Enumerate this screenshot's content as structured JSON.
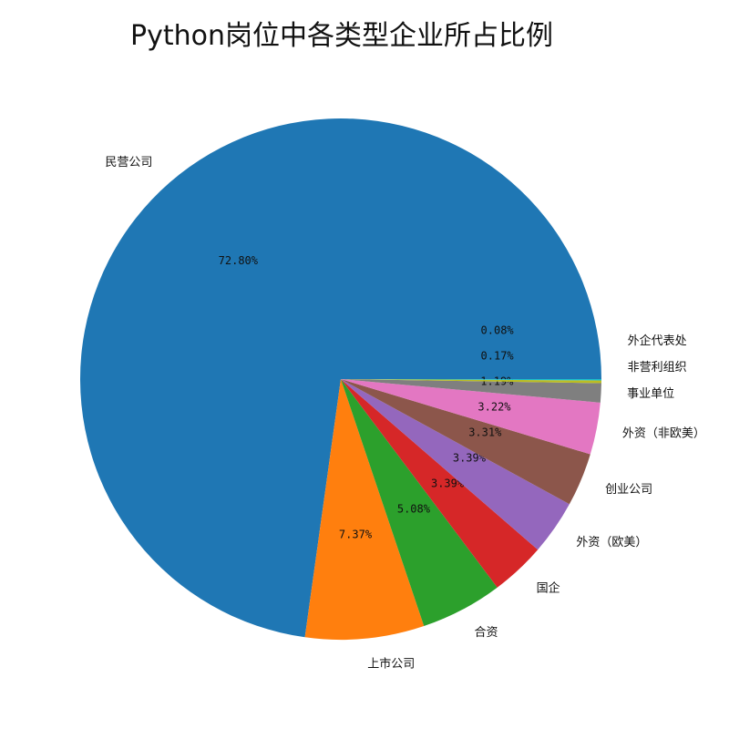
{
  "chart_data": {
    "type": "pie",
    "title": "Python岗位中各类型企业所占比例",
    "start_angle_deg": 0,
    "direction": "counterclockwise",
    "categories": [
      "民营公司",
      "上市公司",
      "合资",
      "国企",
      "外资（欧美）",
      "创业公司",
      "外资（非欧美）",
      "事业单位",
      "非营利组织",
      "外企代表处"
    ],
    "values": [
      72.8,
      7.37,
      5.08,
      3.39,
      3.39,
      3.31,
      3.22,
      1.19,
      0.17,
      0.08
    ],
    "percent_labels": [
      "72.80%",
      "7.37%",
      "5.08%",
      "3.39%",
      "3.39%",
      "3.31%",
      "3.22%",
      "1.19%",
      "0.17%",
      "0.08%"
    ],
    "colors": [
      "#1f77b4",
      "#ff7f0e",
      "#2ca02c",
      "#d62728",
      "#9467bd",
      "#8c564b",
      "#e377c2",
      "#7f7f7f",
      "#bcbd22",
      "#17becf"
    ]
  }
}
